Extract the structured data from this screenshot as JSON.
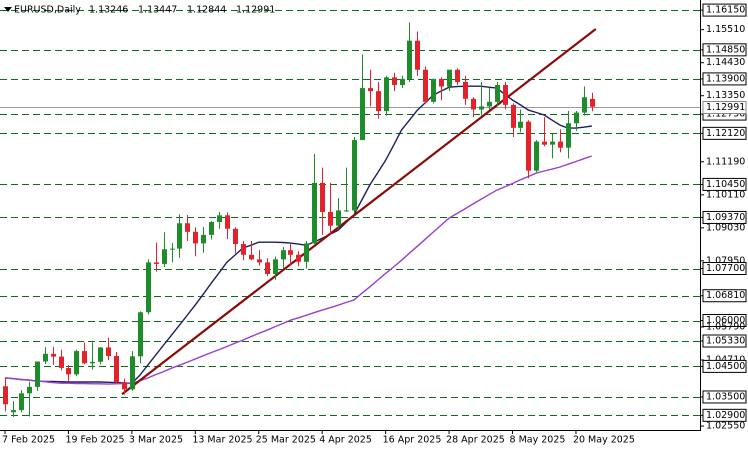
{
  "chart_data": {
    "type": "candlestick",
    "symbol": "EURUSD,Daily",
    "categories": [
      "7 Feb 2025",
      null,
      null,
      null,
      null,
      null,
      null,
      null,
      "19 Feb 2025",
      null,
      null,
      null,
      null,
      null,
      null,
      null,
      "3 Mar 2025",
      null,
      null,
      null,
      null,
      null,
      null,
      null,
      "13 Mar 2025",
      null,
      null,
      null,
      null,
      null,
      null,
      null,
      "25 Mar 2025",
      null,
      null,
      null,
      null,
      null,
      null,
      null,
      "4 Apr 2025",
      null,
      null,
      null,
      null,
      null,
      null,
      null,
      "16 Apr 2025",
      null,
      null,
      null,
      null,
      null,
      null,
      null,
      "28 Apr 2025",
      null,
      null,
      null,
      null,
      null,
      null,
      null,
      "8 May 2025",
      null,
      null,
      null,
      null,
      null,
      null,
      null,
      "20 May 2025",
      null,
      null
    ],
    "open": [
      1.0385,
      1.03,
      1.0307,
      1.0362,
      1.0383,
      1.0466,
      1.0491,
      1.0482,
      1.0445,
      1.0424,
      1.05,
      1.046,
      1.0465,
      1.0512,
      1.0484,
      1.0398,
      1.0375,
      1.0483,
      1.0627,
      1.079,
      1.0785,
      1.0833,
      1.0835,
      1.0918,
      1.089,
      1.0852,
      1.088,
      1.0922,
      1.0944,
      1.09,
      1.085,
      1.0815,
      1.08,
      1.079,
      1.0752,
      1.08,
      1.083,
      1.0815,
      1.0792,
      1.0852,
      1.105,
      1.0955,
      1.091,
      1.096,
      1.096,
      1.119,
      1.136,
      1.135,
      1.1285,
      1.1395,
      1.137,
      1.139,
      1.1515,
      1.142,
      1.1315,
      1.139,
      1.1365,
      1.142,
      1.138,
      1.1325,
      1.129,
      1.13,
      1.1315,
      1.137,
      1.1305,
      1.123,
      1.125,
      1.109,
      1.1185,
      1.1175,
      1.1185,
      1.1165,
      1.1245,
      1.128,
      1.13246
    ],
    "high": [
      1.0414,
      1.0336,
      1.0372,
      1.04,
      1.0466,
      1.0513,
      1.0514,
      1.0505,
      1.0454,
      1.0505,
      1.0528,
      1.0529,
      1.0513,
      1.0544,
      1.0497,
      1.041,
      1.05,
      1.063,
      1.08,
      1.0855,
      1.0888,
      1.0853,
      1.0947,
      1.0945,
      1.0905,
      1.0906,
      1.0925,
      1.0955,
      1.0953,
      1.0905,
      1.086,
      1.086,
      1.083,
      1.0804,
      1.0809,
      1.084,
      1.085,
      1.0827,
      1.086,
      1.1145,
      1.11,
      1.105,
      1.1,
      1.11,
      1.12,
      1.147,
      1.142,
      1.138,
      1.14,
      1.141,
      1.14,
      1.1575,
      1.1545,
      1.143,
      1.139,
      1.1395,
      1.142,
      1.1425,
      1.14,
      1.133,
      1.138,
      1.136,
      1.138,
      1.138,
      1.131,
      1.129,
      1.1255,
      1.119,
      1.1265,
      1.121,
      1.1225,
      1.1285,
      1.1285,
      1.1365,
      1.13447
    ],
    "low": [
      1.0303,
      1.0285,
      1.03,
      1.0286,
      1.037,
      1.0458,
      1.0455,
      1.0437,
      1.0401,
      1.0418,
      1.0457,
      1.044,
      1.0456,
      1.047,
      1.0396,
      1.0358,
      1.037,
      1.046,
      1.062,
      1.076,
      1.0775,
      1.079,
      1.0805,
      1.086,
      1.081,
      1.0822,
      1.0865,
      1.09,
      1.0866,
      1.082,
      1.0797,
      1.0797,
      1.078,
      1.0745,
      1.0733,
      1.077,
      1.078,
      1.0777,
      1.077,
      1.085,
      1.088,
      1.088,
      1.09,
      1.0955,
      1.095,
      1.119,
      1.13,
      1.126,
      1.127,
      1.135,
      1.136,
      1.138,
      1.14,
      1.131,
      1.131,
      1.132,
      1.135,
      1.137,
      1.1305,
      1.1265,
      1.127,
      1.129,
      1.13,
      1.129,
      1.12,
      1.1215,
      1.1065,
      1.1085,
      1.117,
      1.113,
      1.115,
      1.113,
      1.122,
      1.127,
      1.12844
    ],
    "close": [
      1.0326,
      1.0307,
      1.0362,
      1.0383,
      1.0466,
      1.0491,
      1.0482,
      1.0445,
      1.0424,
      1.05,
      1.046,
      1.0465,
      1.0512,
      1.0484,
      1.0398,
      1.0375,
      1.0483,
      1.0627,
      1.079,
      1.0785,
      1.0833,
      1.0835,
      1.0918,
      1.089,
      1.0852,
      1.088,
      1.0922,
      1.0944,
      1.09,
      1.085,
      1.0815,
      1.08,
      1.079,
      1.0752,
      1.08,
      1.083,
      1.0815,
      1.0792,
      1.0852,
      1.105,
      1.0955,
      1.091,
      1.096,
      1.096,
      1.119,
      1.136,
      1.135,
      1.1285,
      1.1395,
      1.137,
      1.139,
      1.1515,
      1.142,
      1.1315,
      1.139,
      1.1365,
      1.142,
      1.138,
      1.1325,
      1.129,
      1.13,
      1.1315,
      1.137,
      1.1305,
      1.123,
      1.125,
      1.109,
      1.1185,
      1.1175,
      1.1185,
      1.1165,
      1.1245,
      1.128,
      1.133,
      1.12991
    ],
    "up_color": "#1e8c2a",
    "down_color": "#e3232b",
    "moving_averages": [
      {
        "color": "#1c1f5e",
        "values": [
          1.0412,
          1.041,
          1.0407,
          1.0405,
          1.0402,
          1.0401,
          1.0401,
          1.04,
          1.0399,
          1.0399,
          1.0399,
          1.0399,
          1.0399,
          1.0398,
          1.0397,
          1.0396,
          1.0395,
          1.0421,
          1.0454,
          1.0487,
          1.052,
          1.0552,
          1.0585,
          1.0618,
          1.0651,
          1.0686,
          1.0722,
          1.0756,
          1.0791,
          1.0814,
          1.0837,
          1.0846,
          1.0856,
          1.0856,
          1.0856,
          1.0855,
          1.0853,
          1.085,
          1.0846,
          1.0857,
          1.0869,
          1.0882,
          1.0895,
          1.092,
          1.0945,
          1.0994,
          1.1043,
          1.1083,
          1.1124,
          1.1173,
          1.1223,
          1.1255,
          1.1288,
          1.1312,
          1.1337,
          1.135,
          1.1363,
          1.1365,
          1.1366,
          1.1366,
          1.1366,
          1.1363,
          1.136,
          1.134,
          1.1321,
          1.1305,
          1.1288,
          1.128,
          1.1272,
          1.1255,
          1.1239,
          1.1229,
          1.1229,
          1.1232,
          1.1236
        ]
      },
      {
        "color": "#9a3fd0",
        "values": [
          1.0412,
          1.041,
          1.0407,
          1.0405,
          1.0402,
          1.04,
          1.0397,
          1.0395,
          1.0395,
          1.0394,
          1.0394,
          1.0393,
          1.0393,
          1.0392,
          1.0393,
          1.0394,
          1.0395,
          1.0403,
          1.0412,
          1.0423,
          1.0433,
          1.0444,
          1.0454,
          1.0464,
          1.0474,
          1.0485,
          1.0495,
          1.0505,
          1.0515,
          1.0526,
          1.0536,
          1.0547,
          1.0558,
          1.0568,
          1.0579,
          1.059,
          1.0601,
          1.0609,
          1.0617,
          1.0626,
          1.0634,
          1.0642,
          1.065,
          1.0659,
          1.0667,
          1.0689,
          1.071,
          1.0732,
          1.0754,
          1.0775,
          1.0797,
          1.082,
          1.0843,
          1.0866,
          1.0889,
          1.0912,
          1.0935,
          1.095,
          1.0965,
          1.0981,
          1.0996,
          1.1011,
          1.1026,
          1.1037,
          1.1048,
          1.106,
          1.1071,
          1.1082,
          1.1089,
          1.1095,
          1.1102,
          1.1111,
          1.112,
          1.1129,
          1.1138
        ]
      }
    ],
    "trendline": {
      "color": "#8b0a0a",
      "x": [
        14.75,
        74.5
      ],
      "y": [
        1.0359,
        1.1553
      ]
    },
    "levels": [
      1.1615,
      1.1485,
      1.139,
      1.1275,
      1.1212,
      1.1045,
      1.0937,
      1.077,
      1.0681,
      1.06,
      1.0533,
      1.045,
      1.035,
      1.029
    ],
    "level_color": "#0b6b1e",
    "last_price": 1.12991,
    "ylim": [
      1.0242,
      1.1648
    ],
    "yticks": [
      {
        "value": 1.1615,
        "label": "1.16150"
      },
      {
        "value": 1.1551,
        "label": "1.15510"
      },
      {
        "value": 1.1485,
        "label": "1.14850"
      },
      {
        "value": 1.1443,
        "label": "1.14430"
      },
      {
        "value": 1.139,
        "label": "1.13900"
      },
      {
        "value": 1.1335,
        "label": "1.13350"
      },
      {
        "value": 1.1275,
        "label": "1.12750"
      },
      {
        "value": 1.1212,
        "label": "1.12120"
      },
      {
        "value": 1.1119,
        "label": "1.11190"
      },
      {
        "value": 1.1045,
        "label": "1.10450"
      },
      {
        "value": 1.1011,
        "label": "1.10110"
      },
      {
        "value": 1.0937,
        "label": "1.09370"
      },
      {
        "value": 1.0903,
        "label": "1.09030"
      },
      {
        "value": 1.0795,
        "label": "1.07950"
      },
      {
        "value": 1.077,
        "label": "1.07700"
      },
      {
        "value": 1.0681,
        "label": "1.06810"
      },
      {
        "value": 1.06,
        "label": "1.06000"
      },
      {
        "value": 1.0579,
        "label": "1.05790"
      },
      {
        "value": 1.0533,
        "label": "1.05330"
      },
      {
        "value": 1.0471,
        "label": "1.04710"
      },
      {
        "value": 1.045,
        "label": "1.04500"
      },
      {
        "value": 1.035,
        "label": "1.03500"
      },
      {
        "value": 1.029,
        "label": "1.02900"
      },
      {
        "value": 1.0255,
        "label": "1.02550"
      }
    ]
  }
}
